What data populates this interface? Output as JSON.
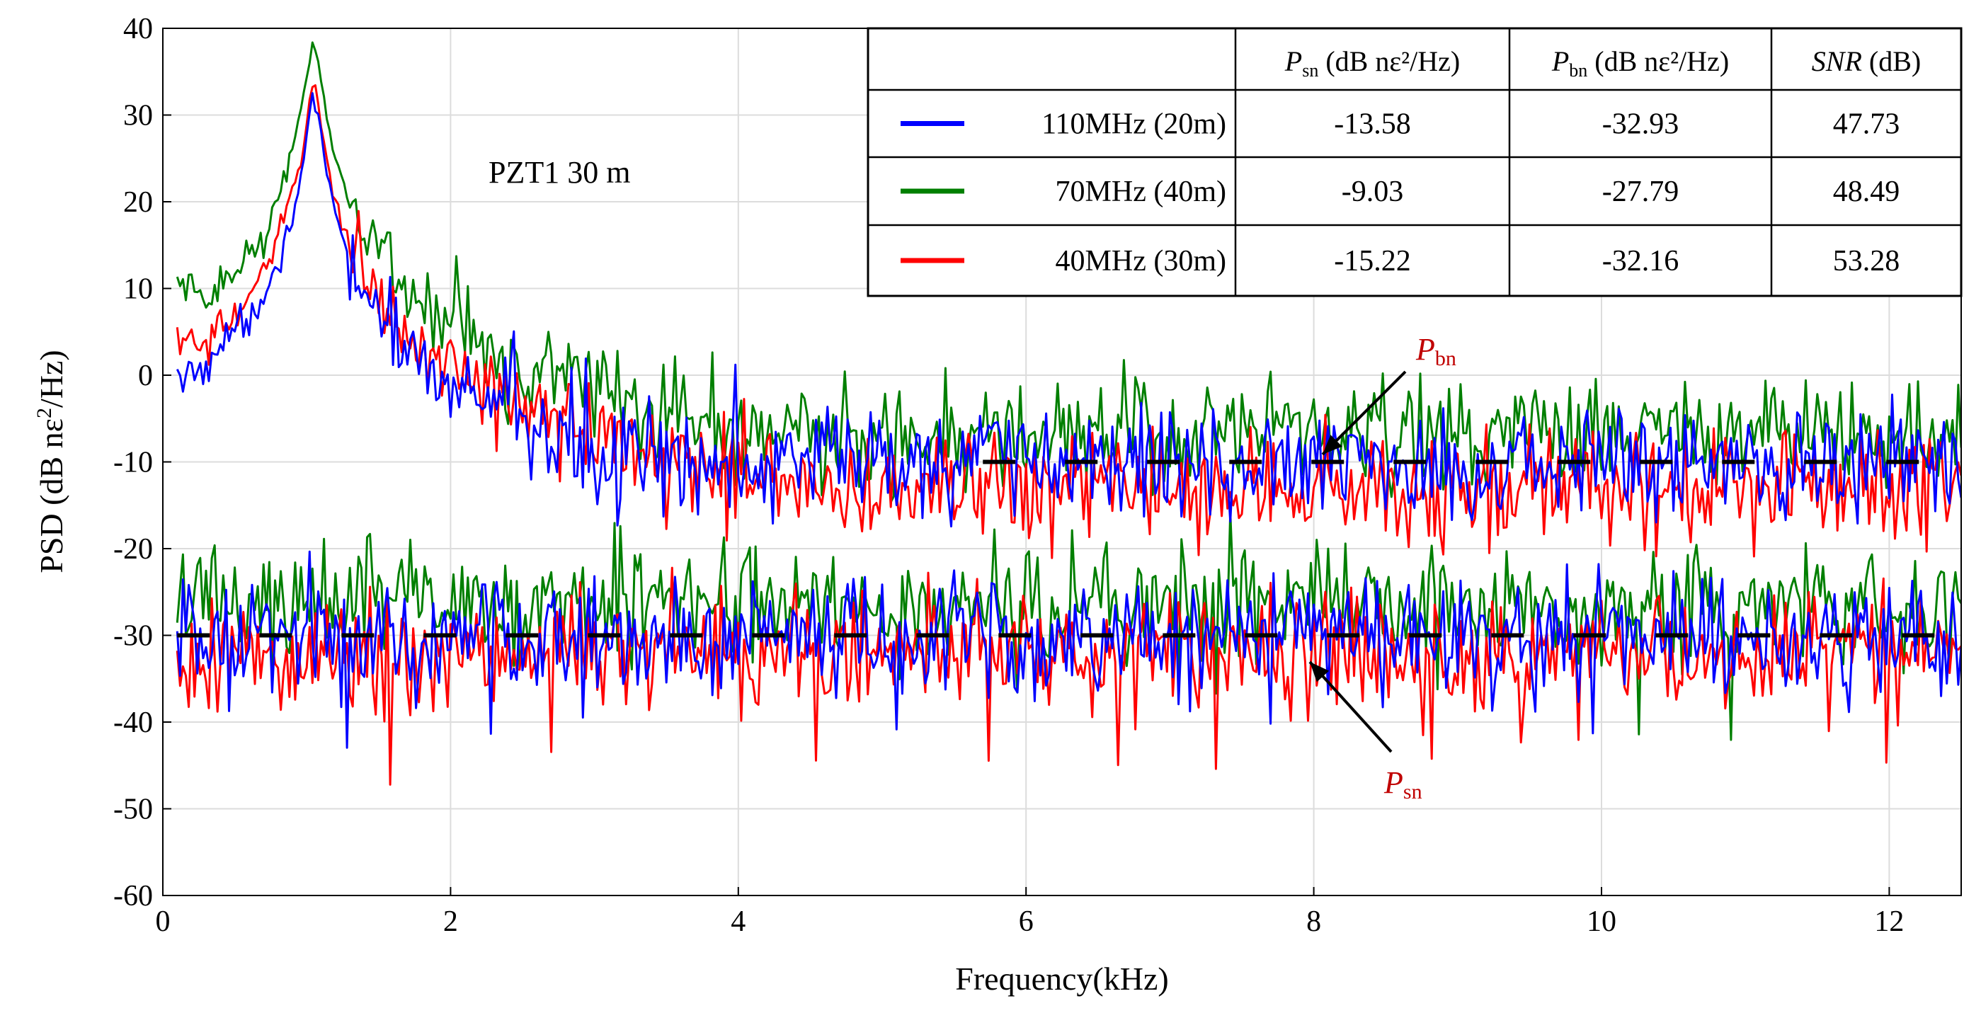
{
  "chart_data": {
    "type": "line",
    "title": "PZT1 30 m",
    "xlabel": "Frequency(kHz)",
    "ylabel": "PSD (dB nε²/Hz)",
    "ylabel_parts": {
      "main": "PSD (dB nε",
      "sup": "2",
      "tail": "/Hz)"
    },
    "xlim": [
      0,
      12.5
    ],
    "ylim": [
      -60,
      40
    ],
    "xticks": [
      0,
      2,
      4,
      6,
      8,
      10,
      12
    ],
    "yticks": [
      -60,
      -50,
      -40,
      -30,
      -20,
      -10,
      0,
      10,
      20,
      30,
      40
    ],
    "xtick_labels": [
      "0",
      "2",
      "4",
      "6",
      "8",
      "10",
      "12"
    ],
    "ytick_labels": [
      "-60",
      "-50",
      "-40",
      "-30",
      "-20",
      "-10",
      "0",
      "10",
      "20",
      "30",
      "40"
    ],
    "grid": true,
    "series": [
      {
        "name": "110MHz  (20m)",
        "color": "#0000ff",
        "peak": {
          "x": 1.05,
          "y": 31
        },
        "low_start": -3.5,
        "signal_level": -10,
        "noise_level": -30
      },
      {
        "name": "70MHz  (40m)",
        "color": "#007f00",
        "peak": {
          "x": 1.05,
          "y": 38
        },
        "low_start": 10,
        "signal_level": -7,
        "noise_level": -26
      },
      {
        "name": "40MHz (30m)",
        "color": "#ff0000",
        "peak": {
          "x": 1.05,
          "y": 33
        },
        "low_start": 4.5,
        "signal_level": -13,
        "noise_level": -32
      }
    ],
    "reference_lines": [
      {
        "name": "Pbn",
        "y": -10,
        "x_start": 5.7,
        "x_end": 12.5,
        "style": "dashed",
        "color": "#000000"
      },
      {
        "name": "Psn",
        "y": -30,
        "x_start": 0.1,
        "x_end": 12.5,
        "style": "dashed",
        "color": "#000000"
      }
    ],
    "annotations": [
      {
        "label_main": "P",
        "label_sub": "bn",
        "arrow_to": {
          "x": 8.0,
          "y": -10
        },
        "color": "#c00000"
      },
      {
        "label_main": "P",
        "label_sub": "sn",
        "arrow_to": {
          "x": 7.9,
          "y": -31
        },
        "color": "#c00000"
      }
    ],
    "table": {
      "headers": [
        {
          "main": "",
          "sub": "",
          "unit": ""
        },
        {
          "main": "P",
          "sub": "sn",
          "unit": " (dB nε²/Hz)"
        },
        {
          "main": "P",
          "sub": "bn",
          "unit": " (dB nε²/Hz)"
        },
        {
          "main": "SNR",
          "sub": "",
          "unit": " (dB)"
        }
      ],
      "rows": [
        {
          "label": "110MHz  (20m)",
          "color": "#0000ff",
          "psn": "-13.58",
          "pbn": "-32.93",
          "snr": "47.73"
        },
        {
          "label": "70MHz  (40m)",
          "color": "#007f00",
          "psn": "-9.03",
          "pbn": "-27.79",
          "snr": "48.49"
        },
        {
          "label": "40MHz (30m)",
          "color": "#ff0000",
          "psn": "-15.22",
          "pbn": "-32.16",
          "snr": "53.28"
        }
      ]
    }
  }
}
